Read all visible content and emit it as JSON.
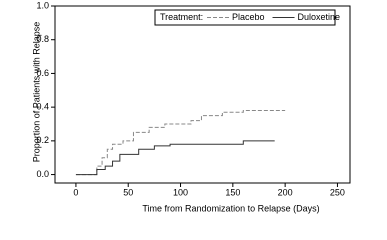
{
  "chart_data": {
    "type": "line",
    "step": true,
    "xlabel": "Time from Randomization to Relapse (Days)",
    "ylabel": "Proportion of Patients with Relapse",
    "legend_title": "Treatment:",
    "legend": "upper right",
    "xlim": [
      -20,
      262
    ],
    "ylim": [
      -0.05,
      1.0
    ],
    "xticks": [
      0,
      50,
      100,
      150,
      200,
      250
    ],
    "yticks": [
      {
        "value": 0,
        "label": "0.0"
      },
      0.2,
      0.4,
      0.6,
      0.8,
      {
        "value": 1,
        "label": "1.0"
      }
    ],
    "series": [
      {
        "name": "Placebo",
        "color": "#888888",
        "dash": true,
        "x": [
          0,
          20,
          20,
          25,
          25,
          30,
          30,
          35,
          35,
          45,
          45,
          55,
          55,
          70,
          70,
          85,
          85,
          110,
          110,
          120,
          120,
          140,
          140,
          160,
          160,
          200
        ],
        "values": [
          0,
          0,
          0.05,
          0.05,
          0.1,
          0.1,
          0.15,
          0.15,
          0.18,
          0.18,
          0.2,
          0.2,
          0.25,
          0.25,
          0.28,
          0.28,
          0.3,
          0.3,
          0.32,
          0.32,
          0.35,
          0.35,
          0.37,
          0.37,
          0.38,
          0.38
        ]
      },
      {
        "name": "Duloxetine",
        "color": "#333333",
        "dash": false,
        "x": [
          0,
          20,
          20,
          28,
          28,
          35,
          35,
          42,
          42,
          60,
          60,
          75,
          75,
          90,
          90,
          160,
          160,
          190
        ],
        "values": [
          0,
          0,
          0.03,
          0.03,
          0.05,
          0.05,
          0.08,
          0.08,
          0.12,
          0.12,
          0.15,
          0.15,
          0.17,
          0.17,
          0.18,
          0.18,
          0.2,
          0.2
        ]
      }
    ]
  }
}
